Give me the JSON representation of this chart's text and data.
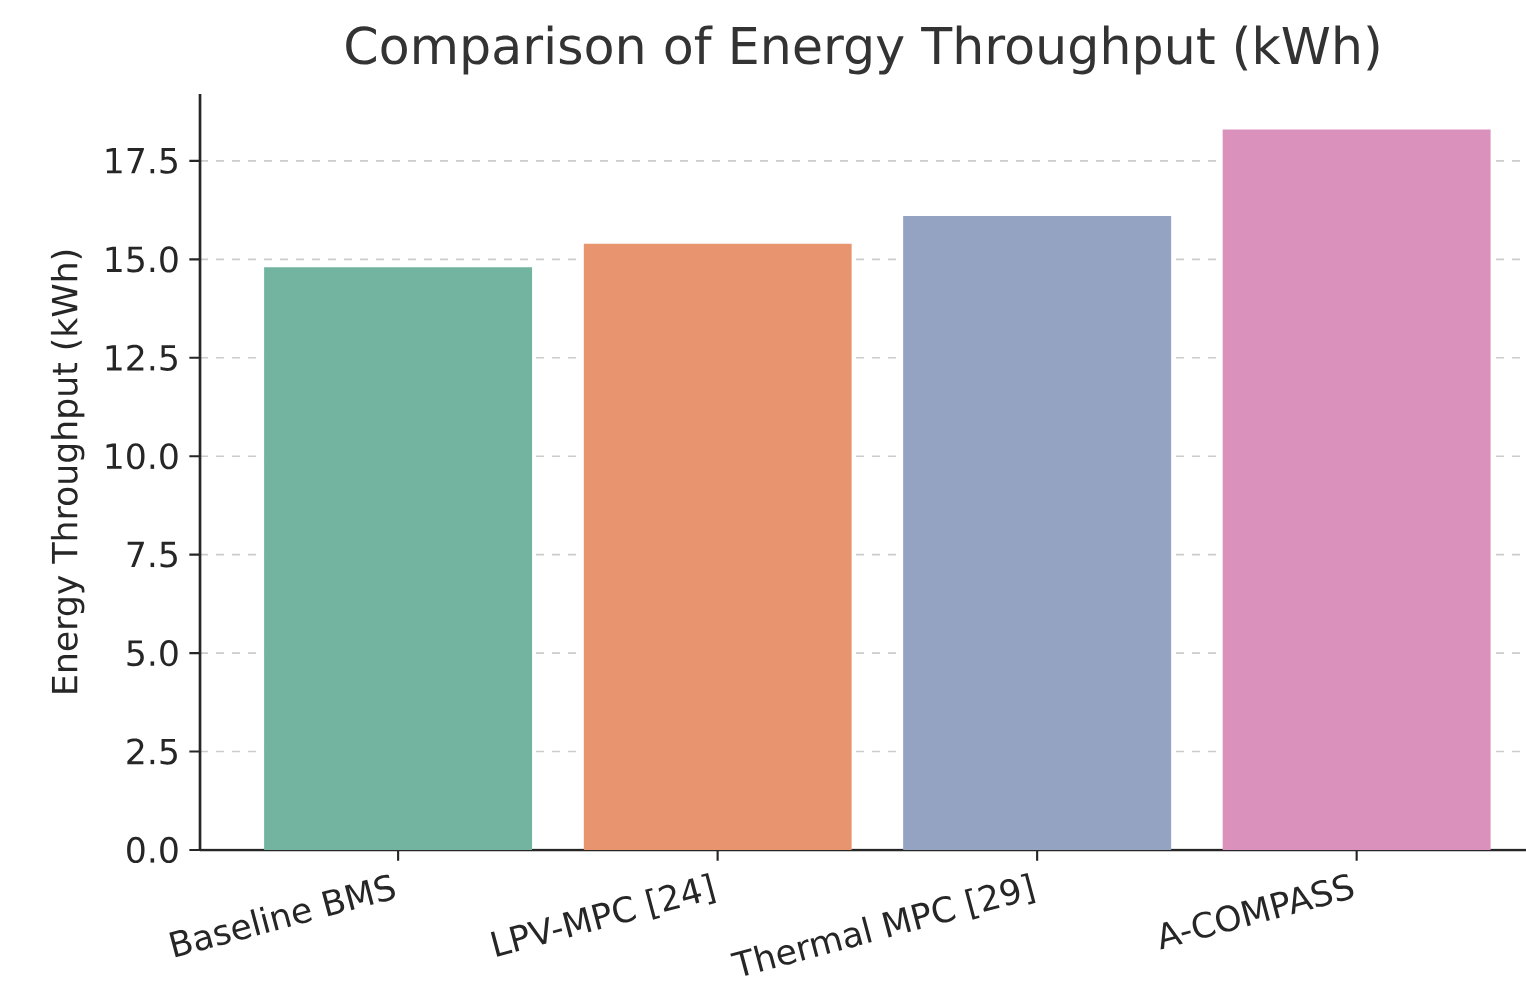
{
  "chart_data": {
    "type": "bar",
    "title": "Comparison of Energy Throughput (kWh)",
    "ylabel": "Energy Throughput (kWh)",
    "categories": [
      "Baseline BMS",
      "LPV-MPC [24]",
      "Thermal MPC [29]",
      "A-COMPASS"
    ],
    "values": [
      14.8,
      15.4,
      16.1,
      18.3
    ],
    "colors": [
      "#72b4a0",
      "#e8956f",
      "#94a3c2",
      "#da92bd"
    ],
    "ylim": [
      0,
      19.2
    ],
    "yticks": [
      {
        "value": 0,
        "label": "0.0"
      },
      {
        "value": 2.5,
        "label": "2.5"
      },
      {
        "value": 5,
        "label": "5.0"
      },
      {
        "value": 7.5,
        "label": "7.5"
      },
      {
        "value": 10,
        "label": "10.0"
      },
      {
        "value": 12.5,
        "label": "12.5"
      },
      {
        "value": 15,
        "label": "15.0"
      },
      {
        "value": 17.5,
        "label": "17.5"
      }
    ],
    "grid": "y"
  }
}
